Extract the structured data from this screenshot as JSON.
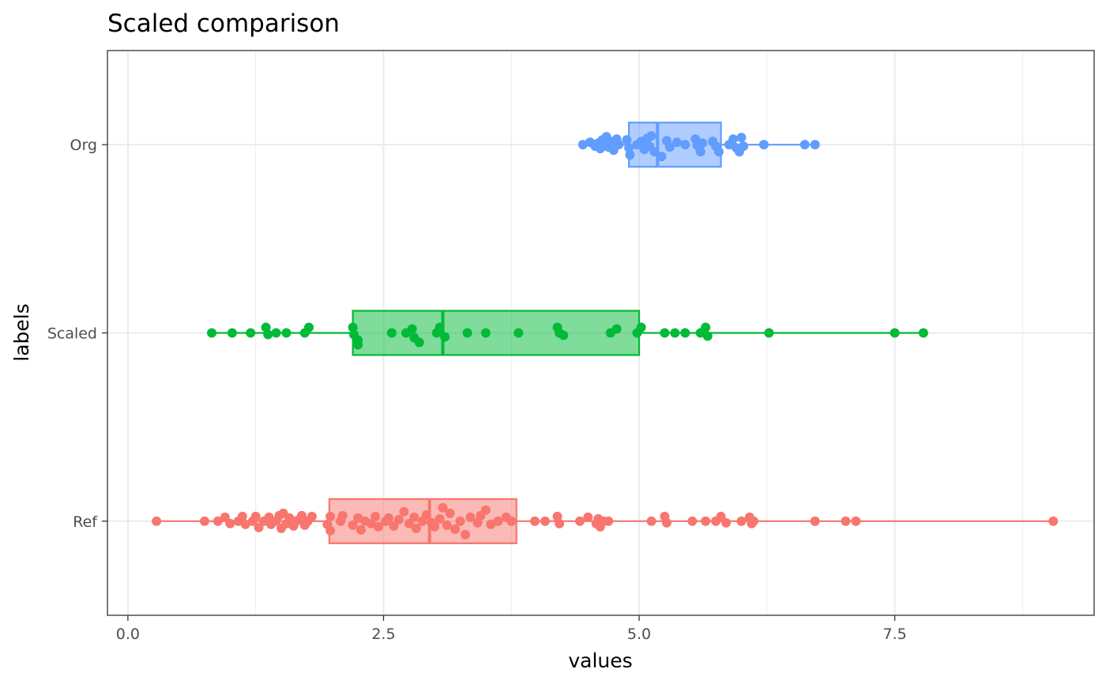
{
  "chart_data": {
    "type": "boxplot",
    "title": "Scaled comparison",
    "xlabel": "values",
    "ylabel": "labels",
    "xlim": [
      -0.2,
      9.45
    ],
    "x_ticks": [
      {
        "value": 0,
        "label": "0.0"
      },
      {
        "value": 2.5,
        "label": "2.5"
      },
      {
        "value": 5,
        "label": "5.0"
      },
      {
        "value": 7.5,
        "label": "7.5"
      }
    ],
    "categories": [
      "Org",
      "Scaled",
      "Ref"
    ],
    "grid": true,
    "legend": "none",
    "series": [
      {
        "category": "Org",
        "color": "#619CFF",
        "fill": "#619CFF",
        "box": {
          "whisker_low": 4.45,
          "q1": 4.9,
          "median": 5.18,
          "q3": 5.8,
          "whisker_high": 6.7
        },
        "points": [
          {
            "x": 4.45,
            "j": 0
          },
          {
            "x": 4.52,
            "j": -3
          },
          {
            "x": 4.57,
            "j": 2
          },
          {
            "x": 4.6,
            "j": -2
          },
          {
            "x": 4.62,
            "j": 5
          },
          {
            "x": 4.64,
            "j": -6
          },
          {
            "x": 4.66,
            "j": 1
          },
          {
            "x": 4.68,
            "j": -10
          },
          {
            "x": 4.7,
            "j": 3
          },
          {
            "x": 4.72,
            "j": -4
          },
          {
            "x": 4.75,
            "j": 7
          },
          {
            "x": 4.78,
            "j": -7
          },
          {
            "x": 4.8,
            "j": 0
          },
          {
            "x": 4.88,
            "j": -6
          },
          {
            "x": 4.9,
            "j": 4
          },
          {
            "x": 4.91,
            "j": 13
          },
          {
            "x": 4.98,
            "j": 0
          },
          {
            "x": 5.02,
            "j": -4
          },
          {
            "x": 5.05,
            "j": 6
          },
          {
            "x": 5.08,
            "j": -8
          },
          {
            "x": 5.1,
            "j": 2
          },
          {
            "x": 5.12,
            "j": -11
          },
          {
            "x": 5.15,
            "j": 9
          },
          {
            "x": 5.22,
            "j": 15
          },
          {
            "x": 5.27,
            "j": -5
          },
          {
            "x": 5.3,
            "j": 3
          },
          {
            "x": 5.37,
            "j": -3
          },
          {
            "x": 5.45,
            "j": 0
          },
          {
            "x": 5.55,
            "j": -7
          },
          {
            "x": 5.57,
            "j": 1
          },
          {
            "x": 5.6,
            "j": 9
          },
          {
            "x": 5.62,
            "j": -2
          },
          {
            "x": 5.72,
            "j": -4
          },
          {
            "x": 5.75,
            "j": 2
          },
          {
            "x": 5.78,
            "j": 9
          },
          {
            "x": 5.88,
            "j": 0
          },
          {
            "x": 5.92,
            "j": -7
          },
          {
            "x": 5.95,
            "j": 4
          },
          {
            "x": 5.98,
            "j": 9
          },
          {
            "x": 6.0,
            "j": -9
          },
          {
            "x": 6.02,
            "j": 2
          },
          {
            "x": 6.22,
            "j": 0
          },
          {
            "x": 6.62,
            "j": 0
          },
          {
            "x": 6.72,
            "j": 0
          }
        ]
      },
      {
        "category": "Scaled",
        "color": "#00BA38",
        "fill": "#00BA38",
        "box": {
          "whisker_low": 0.82,
          "q1": 2.2,
          "median": 3.08,
          "q3": 5.0,
          "whisker_high": 7.78
        },
        "points": [
          {
            "x": 0.82,
            "j": 0
          },
          {
            "x": 1.02,
            "j": 0
          },
          {
            "x": 1.2,
            "j": 0
          },
          {
            "x": 1.35,
            "j": -7
          },
          {
            "x": 1.37,
            "j": 2
          },
          {
            "x": 1.45,
            "j": 0
          },
          {
            "x": 1.55,
            "j": 0
          },
          {
            "x": 1.73,
            "j": 0
          },
          {
            "x": 1.77,
            "j": -7
          },
          {
            "x": 2.2,
            "j": -7
          },
          {
            "x": 2.21,
            "j": 2
          },
          {
            "x": 2.25,
            "j": 9
          },
          {
            "x": 2.25,
            "j": 15
          },
          {
            "x": 2.58,
            "j": 0
          },
          {
            "x": 2.72,
            "j": 0
          },
          {
            "x": 2.78,
            "j": -5
          },
          {
            "x": 2.8,
            "j": 6
          },
          {
            "x": 2.85,
            "j": 12
          },
          {
            "x": 3.02,
            "j": 0
          },
          {
            "x": 3.05,
            "j": -7
          },
          {
            "x": 3.1,
            "j": 5
          },
          {
            "x": 3.32,
            "j": 0
          },
          {
            "x": 3.5,
            "j": 0
          },
          {
            "x": 3.82,
            "j": 0
          },
          {
            "x": 4.2,
            "j": -7
          },
          {
            "x": 4.22,
            "j": 0
          },
          {
            "x": 4.26,
            "j": 3
          },
          {
            "x": 4.72,
            "j": 0
          },
          {
            "x": 4.78,
            "j": -5
          },
          {
            "x": 4.98,
            "j": 0
          },
          {
            "x": 5.02,
            "j": -7
          },
          {
            "x": 5.25,
            "j": 0
          },
          {
            "x": 5.35,
            "j": 0
          },
          {
            "x": 5.45,
            "j": 0
          },
          {
            "x": 5.6,
            "j": 0
          },
          {
            "x": 5.65,
            "j": -7
          },
          {
            "x": 5.67,
            "j": 4
          },
          {
            "x": 6.27,
            "j": 0
          },
          {
            "x": 7.5,
            "j": 0
          },
          {
            "x": 7.78,
            "j": 0
          }
        ]
      },
      {
        "category": "Ref",
        "color": "#F8766D",
        "fill": "#F8766D",
        "box": {
          "whisker_low": 0.28,
          "q1": 1.97,
          "median": 2.95,
          "q3": 3.8,
          "whisker_high": 9.05
        },
        "points": [
          {
            "x": 0.28,
            "j": 0
          },
          {
            "x": 0.75,
            "j": 0
          },
          {
            "x": 0.88,
            "j": 0
          },
          {
            "x": 0.95,
            "j": -5
          },
          {
            "x": 1.0,
            "j": 3
          },
          {
            "x": 1.08,
            "j": 0
          },
          {
            "x": 1.12,
            "j": -6
          },
          {
            "x": 1.15,
            "j": 4
          },
          {
            "x": 1.22,
            "j": 0
          },
          {
            "x": 1.25,
            "j": -6
          },
          {
            "x": 1.28,
            "j": 8
          },
          {
            "x": 1.33,
            "j": 0
          },
          {
            "x": 1.38,
            "j": -5
          },
          {
            "x": 1.4,
            "j": 4
          },
          {
            "x": 1.45,
            "j": 0
          },
          {
            "x": 1.48,
            "j": -7
          },
          {
            "x": 1.5,
            "j": 9
          },
          {
            "x": 1.52,
            "j": -10
          },
          {
            "x": 1.55,
            "j": 3
          },
          {
            "x": 1.58,
            "j": -4
          },
          {
            "x": 1.62,
            "j": 6
          },
          {
            "x": 1.66,
            "j": -1
          },
          {
            "x": 1.7,
            "j": -7
          },
          {
            "x": 1.73,
            "j": 5
          },
          {
            "x": 1.76,
            "j": 0
          },
          {
            "x": 1.8,
            "j": -6
          },
          {
            "x": 1.95,
            "j": 4
          },
          {
            "x": 1.98,
            "j": -6
          },
          {
            "x": 1.98,
            "j": 12
          },
          {
            "x": 2.08,
            "j": 0
          },
          {
            "x": 2.1,
            "j": -7
          },
          {
            "x": 2.2,
            "j": 5
          },
          {
            "x": 2.25,
            "j": -4
          },
          {
            "x": 2.28,
            "j": 11
          },
          {
            "x": 2.32,
            "j": 0
          },
          {
            "x": 2.38,
            "j": 3
          },
          {
            "x": 2.42,
            "j": -6
          },
          {
            "x": 2.45,
            "j": 7
          },
          {
            "x": 2.52,
            "j": 0
          },
          {
            "x": 2.55,
            "j": -4
          },
          {
            "x": 2.6,
            "j": 6
          },
          {
            "x": 2.65,
            "j": -2
          },
          {
            "x": 2.7,
            "j": -12
          },
          {
            "x": 2.75,
            "j": 3
          },
          {
            "x": 2.8,
            "j": -5
          },
          {
            "x": 2.82,
            "j": 9
          },
          {
            "x": 2.88,
            "j": 0
          },
          {
            "x": 2.92,
            "j": -8
          },
          {
            "x": 2.97,
            "j": 2
          },
          {
            "x": 3.0,
            "j": 7
          },
          {
            "x": 3.05,
            "j": -3
          },
          {
            "x": 3.08,
            "j": -17
          },
          {
            "x": 3.12,
            "j": 5
          },
          {
            "x": 3.15,
            "j": -10
          },
          {
            "x": 3.2,
            "j": 10
          },
          {
            "x": 3.25,
            "j": 0
          },
          {
            "x": 3.3,
            "j": 17
          },
          {
            "x": 3.35,
            "j": -5
          },
          {
            "x": 3.42,
            "j": 2
          },
          {
            "x": 3.45,
            "j": -7
          },
          {
            "x": 3.5,
            "j": -14
          },
          {
            "x": 3.55,
            "j": 4
          },
          {
            "x": 3.62,
            "j": 0
          },
          {
            "x": 3.7,
            "j": -5
          },
          {
            "x": 3.75,
            "j": 0
          },
          {
            "x": 3.98,
            "j": 0
          },
          {
            "x": 4.08,
            "j": 0
          },
          {
            "x": 4.2,
            "j": -6
          },
          {
            "x": 4.22,
            "j": 3
          },
          {
            "x": 4.42,
            "j": 0
          },
          {
            "x": 4.5,
            "j": -5
          },
          {
            "x": 4.58,
            "j": 3
          },
          {
            "x": 4.6,
            "j": -3
          },
          {
            "x": 4.62,
            "j": 7
          },
          {
            "x": 4.65,
            "j": 0
          },
          {
            "x": 4.7,
            "j": 0
          },
          {
            "x": 5.12,
            "j": 0
          },
          {
            "x": 5.25,
            "j": -6
          },
          {
            "x": 5.27,
            "j": 2
          },
          {
            "x": 5.52,
            "j": 0
          },
          {
            "x": 5.65,
            "j": 0
          },
          {
            "x": 5.75,
            "j": 0
          },
          {
            "x": 5.8,
            "j": -6
          },
          {
            "x": 5.85,
            "j": 2
          },
          {
            "x": 6.0,
            "j": 0
          },
          {
            "x": 6.08,
            "j": -5
          },
          {
            "x": 6.1,
            "j": 3
          },
          {
            "x": 6.12,
            "j": 0
          },
          {
            "x": 6.72,
            "j": 0
          },
          {
            "x": 7.02,
            "j": 0
          },
          {
            "x": 7.12,
            "j": 0
          },
          {
            "x": 9.05,
            "j": 0
          }
        ]
      }
    ]
  }
}
